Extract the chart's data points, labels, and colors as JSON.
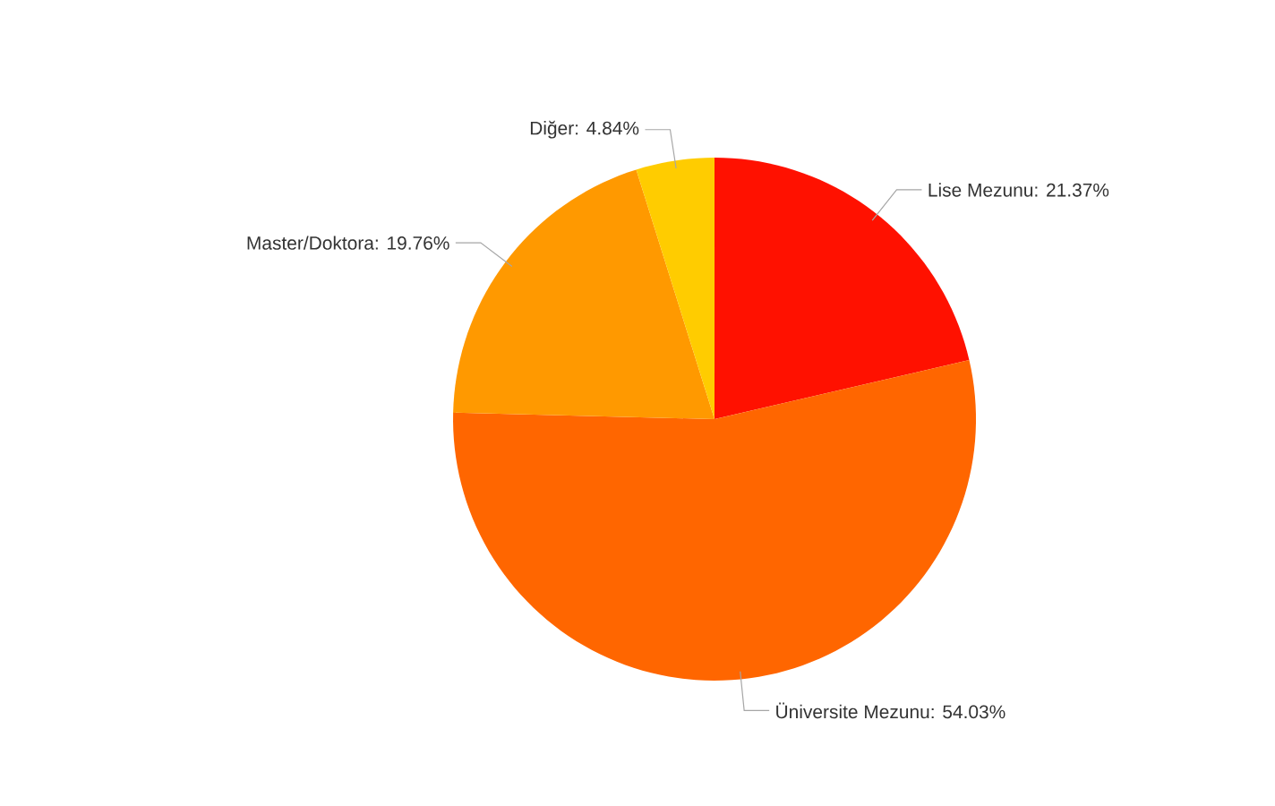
{
  "chart_data": {
    "type": "pie",
    "categories": [
      "Lise Mezunu: 21.37%",
      "Üniversite Mezunu: 54.03%",
      "Master/Doktora: 19.76%",
      "Diğer: 4.84%"
    ],
    "values": [
      21.37,
      54.03,
      19.76,
      4.84
    ],
    "colors": [
      "#ff1100",
      "#ff6600",
      "#ff9900",
      "#ffcc00"
    ]
  }
}
